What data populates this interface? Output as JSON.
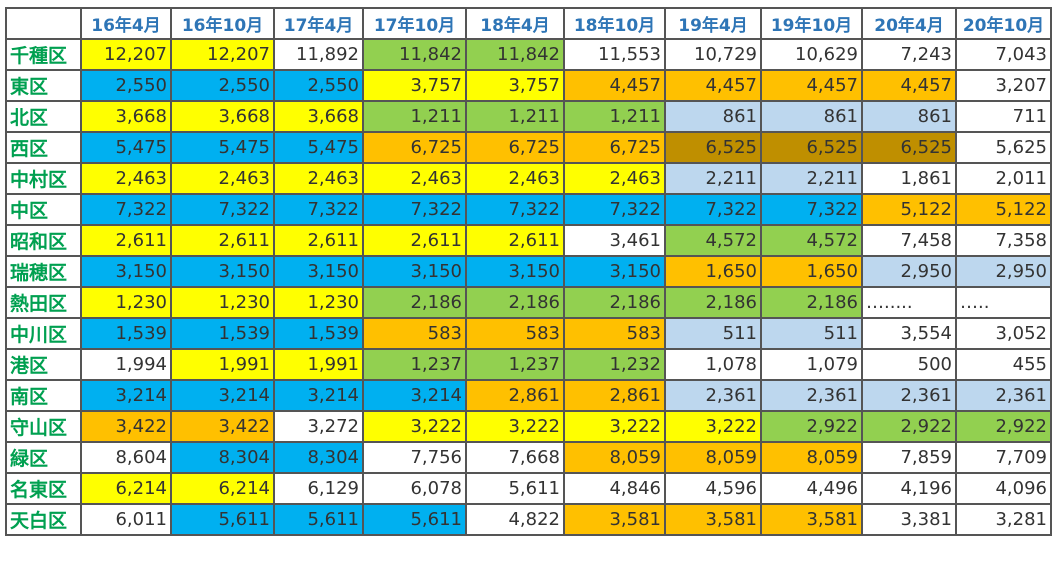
{
  "colors": {
    "Y": "#ffff00",
    "B": "#00b0f0",
    "G": "#92d050",
    "O": "#ffc000",
    "L": "#bdd7ee",
    "D": "#bf8f00",
    "W": "#ffffff"
  },
  "chart_data": {
    "type": "table",
    "columns": [
      "",
      "16年4月",
      "16年10月",
      "17年4月",
      "17年10月",
      "18年4月",
      "18年10月",
      "19年4月",
      "19年10月",
      "20年4月",
      "20年10月"
    ],
    "rows": [
      {
        "label": "千種区",
        "values": [
          "12,207",
          "12,207",
          "11,892",
          "11,842",
          "11,842",
          "11,553",
          "10,729",
          "10,629",
          "7,243",
          "7,043"
        ],
        "fills": [
          "Y",
          "Y",
          "W",
          "G",
          "G",
          "W",
          "W",
          "W",
          "W",
          "W"
        ]
      },
      {
        "label": "東区",
        "values": [
          "2,550",
          "2,550",
          "2,550",
          "3,757",
          "3,757",
          "4,457",
          "4,457",
          "4,457",
          "4,457",
          "3,207"
        ],
        "fills": [
          "B",
          "B",
          "B",
          "Y",
          "Y",
          "O",
          "O",
          "O",
          "O",
          "W"
        ]
      },
      {
        "label": "北区",
        "values": [
          "3,668",
          "3,668",
          "3,668",
          "1,211",
          "1,211",
          "1,211",
          "861",
          "861",
          "861",
          "711"
        ],
        "fills": [
          "Y",
          "Y",
          "Y",
          "G",
          "G",
          "G",
          "L",
          "L",
          "L",
          "W"
        ]
      },
      {
        "label": "西区",
        "values": [
          "5,475",
          "5,475",
          "5,475",
          "6,725",
          "6,725",
          "6,725",
          "6,525",
          "6,525",
          "6,525",
          "5,625"
        ],
        "fills": [
          "B",
          "B",
          "B",
          "O",
          "O",
          "O",
          "D",
          "D",
          "D",
          "W"
        ]
      },
      {
        "label": "中村区",
        "values": [
          "2,463",
          "2,463",
          "2,463",
          "2,463",
          "2,463",
          "2,463",
          "2,211",
          "2,211",
          "1,861",
          "2,011"
        ],
        "fills": [
          "Y",
          "Y",
          "Y",
          "Y",
          "Y",
          "Y",
          "L",
          "L",
          "W",
          "W"
        ]
      },
      {
        "label": "中区",
        "values": [
          "7,322",
          "7,322",
          "7,322",
          "7,322",
          "7,322",
          "7,322",
          "7,322",
          "7,322",
          "5,122",
          "5,122"
        ],
        "fills": [
          "B",
          "B",
          "B",
          "B",
          "B",
          "B",
          "B",
          "B",
          "O",
          "O"
        ]
      },
      {
        "label": "昭和区",
        "values": [
          "2,611",
          "2,611",
          "2,611",
          "2,611",
          "2,611",
          "3,461",
          "4,572",
          "4,572",
          "7,458",
          "7,358"
        ],
        "fills": [
          "Y",
          "Y",
          "Y",
          "Y",
          "Y",
          "W",
          "G",
          "G",
          "W",
          "W"
        ]
      },
      {
        "label": "瑞穂区",
        "values": [
          "3,150",
          "3,150",
          "3,150",
          "3,150",
          "3,150",
          "3,150",
          "1,650",
          "1,650",
          "2,950",
          "2,950"
        ],
        "fills": [
          "B",
          "B",
          "B",
          "B",
          "B",
          "B",
          "O",
          "O",
          "L",
          "L"
        ]
      },
      {
        "label": "熱田区",
        "values": [
          "1,230",
          "1,230",
          "1,230",
          "2,186",
          "2,186",
          "2,186",
          "2,186",
          "2,186",
          "….....",
          "….."
        ],
        "fills": [
          "Y",
          "Y",
          "Y",
          "G",
          "G",
          "G",
          "G",
          "G",
          "W",
          "W"
        ]
      },
      {
        "label": "中川区",
        "values": [
          "1,539",
          "1,539",
          "1,539",
          "583",
          "583",
          "583",
          "511",
          "511",
          "3,554",
          "3,052"
        ],
        "fills": [
          "B",
          "B",
          "B",
          "O",
          "O",
          "O",
          "L",
          "L",
          "W",
          "W"
        ]
      },
      {
        "label": "港区",
        "values": [
          "1,994",
          "1,991",
          "1,991",
          "1,237",
          "1,237",
          "1,232",
          "1,078",
          "1,079",
          "500",
          "455"
        ],
        "fills": [
          "W",
          "Y",
          "Y",
          "G",
          "G",
          "G",
          "W",
          "W",
          "W",
          "W"
        ]
      },
      {
        "label": "南区",
        "values": [
          "3,214",
          "3,214",
          "3,214",
          "3,214",
          "2,861",
          "2,861",
          "2,361",
          "2,361",
          "2,361",
          "2,361"
        ],
        "fills": [
          "B",
          "B",
          "B",
          "B",
          "O",
          "O",
          "L",
          "L",
          "L",
          "L"
        ]
      },
      {
        "label": "守山区",
        "values": [
          "3,422",
          "3,422",
          "3,272",
          "3,222",
          "3,222",
          "3,222",
          "3,222",
          "2,922",
          "2,922",
          "2,922"
        ],
        "fills": [
          "O",
          "O",
          "W",
          "Y",
          "Y",
          "Y",
          "Y",
          "G",
          "G",
          "G"
        ]
      },
      {
        "label": "緑区",
        "values": [
          "8,604",
          "8,304",
          "8,304",
          "7,756",
          "7,668",
          "8,059",
          "8,059",
          "8,059",
          "7,859",
          "7,709"
        ],
        "fills": [
          "W",
          "B",
          "B",
          "W",
          "W",
          "O",
          "O",
          "O",
          "W",
          "W"
        ]
      },
      {
        "label": "名東区",
        "values": [
          "6,214",
          "6,214",
          "6,129",
          "6,078",
          "5,611",
          "4,846",
          "4,596",
          "4,496",
          "4,196",
          "4,096"
        ],
        "fills": [
          "Y",
          "Y",
          "W",
          "W",
          "W",
          "W",
          "W",
          "W",
          "W",
          "W"
        ]
      },
      {
        "label": "天白区",
        "values": [
          "6,011",
          "5,611",
          "5,611",
          "5,611",
          "4,822",
          "3,581",
          "3,581",
          "3,581",
          "3,381",
          "3,281"
        ],
        "fills": [
          "W",
          "B",
          "B",
          "B",
          "W",
          "O",
          "O",
          "O",
          "W",
          "W"
        ]
      }
    ]
  }
}
